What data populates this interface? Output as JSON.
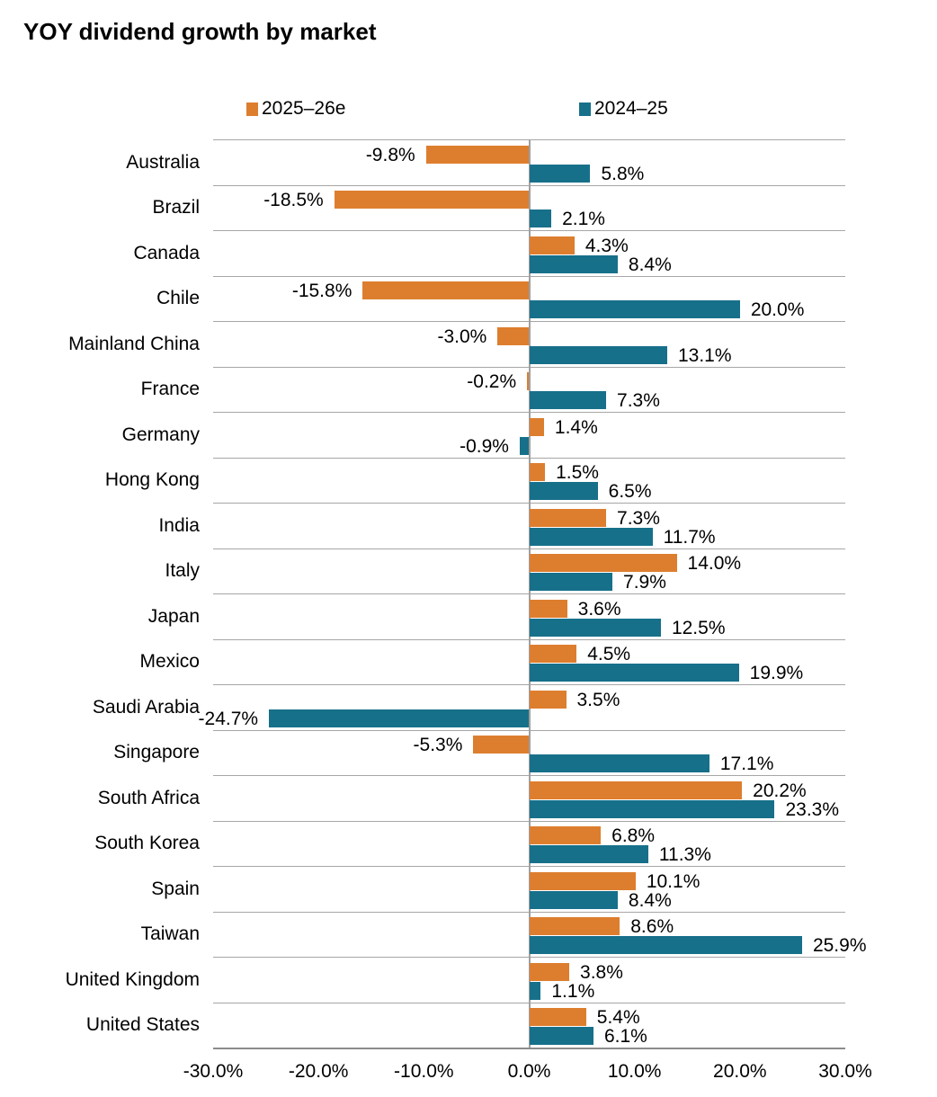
{
  "title": "YOY dividend growth by market",
  "legend": {
    "items": [
      {
        "label": "2025–26e",
        "color": "#DD7E2F"
      },
      {
        "label": "2024–25",
        "color": "#17708A"
      }
    ],
    "position": "top"
  },
  "colors": {
    "orange_series": "#DD7E2F",
    "teal_series": "#17708A",
    "row_separator": "#A6A6A6",
    "zero_axis": "#A0A0A0",
    "baseline": "#8C8C8C",
    "background": "#FFFFFF",
    "text": "#000000"
  },
  "chart_data": {
    "type": "bar",
    "orientation": "horizontal",
    "title": "YOY dividend growth by market",
    "xlabel": "",
    "ylabel": "",
    "xlim": [
      -30,
      30
    ],
    "grid": "row-separators",
    "legend_position": "top",
    "data_labels": true,
    "categories": [
      "Australia",
      "Brazil",
      "Canada",
      "Chile",
      "Mainland China",
      "France",
      "Germany",
      "Hong Kong",
      "India",
      "Italy",
      "Japan",
      "Mexico",
      "Saudi Arabia",
      "Singapore",
      "South Africa",
      "South Korea",
      "Spain",
      "Taiwan",
      "United Kingdom",
      "United States"
    ],
    "series": [
      {
        "name": "2025–26e",
        "color": "#DD7E2F",
        "values": [
          -9.8,
          -18.5,
          4.3,
          -15.8,
          -3.0,
          -0.2,
          1.4,
          1.5,
          7.3,
          14.0,
          3.6,
          4.5,
          3.5,
          -5.3,
          20.2,
          6.8,
          10.1,
          8.6,
          3.8,
          5.4
        ],
        "labels": [
          "-9.8%",
          "-18.5%",
          "4.3%",
          "-15.8%",
          "-3.0%",
          "-0.2%",
          "1.4%",
          "1.5%",
          "7.3%",
          "14.0%",
          "3.6%",
          "4.5%",
          "3.5%",
          "-5.3%",
          "20.2%",
          "6.8%",
          "10.1%",
          "8.6%",
          "3.8%",
          "5.4%"
        ]
      },
      {
        "name": "2024–25",
        "color": "#17708A",
        "values": [
          5.8,
          2.1,
          8.4,
          20.0,
          13.1,
          7.3,
          -0.9,
          6.5,
          11.7,
          7.9,
          12.5,
          19.9,
          -24.7,
          17.1,
          23.3,
          11.3,
          8.4,
          25.9,
          1.1,
          6.1
        ],
        "labels": [
          "5.8%",
          "2.1%",
          "8.4%",
          "20.0%",
          "13.1%",
          "7.3%",
          "-0.9%",
          "6.5%",
          "11.7%",
          "7.9%",
          "12.5%",
          "19.9%",
          "-24.7%",
          "17.1%",
          "23.3%",
          "11.3%",
          "8.4%",
          "25.9%",
          "1.1%",
          "6.1%"
        ]
      }
    ],
    "x_ticks": [
      {
        "label": "-30.0%",
        "value": -30
      },
      {
        "label": "-20.0%",
        "value": -20
      },
      {
        "label": "-10.0%",
        "value": -10
      },
      {
        "label": "0.0%",
        "value": 0
      },
      {
        "label": "10.0%",
        "value": 10
      },
      {
        "label": "20.0%",
        "value": 20
      },
      {
        "label": "30.0%",
        "value": 30
      }
    ]
  }
}
